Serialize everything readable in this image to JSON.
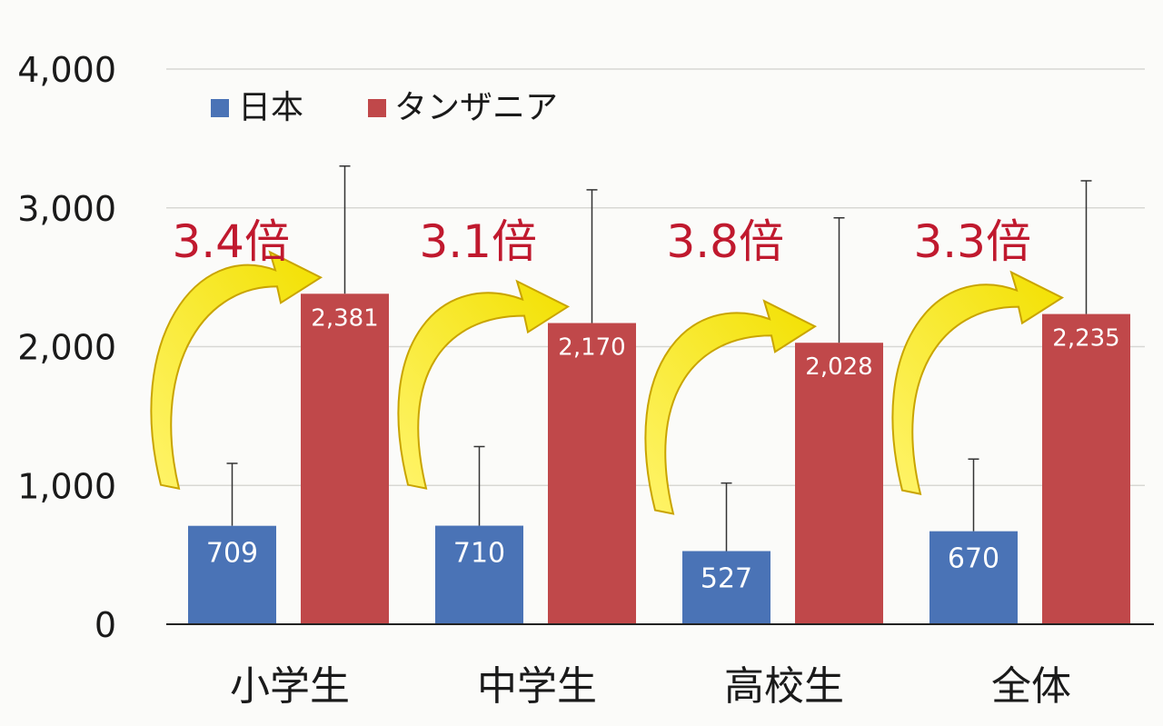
{
  "chart_data": {
    "type": "bar",
    "categories": [
      "小学生",
      "中学生",
      "高校生",
      "全体"
    ],
    "series": [
      {
        "name": "日本",
        "color": "#4a73b6",
        "values": [
          709,
          710,
          527,
          670
        ],
        "labels": [
          "709",
          "710",
          "527",
          "670"
        ],
        "error": [
          450,
          570,
          490,
          520
        ]
      },
      {
        "name": "タンザニア",
        "color": "#c0484a",
        "values": [
          2381,
          2170,
          2028,
          2235
        ],
        "labels": [
          "2,381",
          "2,170",
          "2,028",
          "2,235"
        ],
        "error": [
          920,
          960,
          900,
          960
        ]
      }
    ],
    "ratios": [
      "3.4倍",
      "3.1倍",
      "3.8倍",
      "3.3倍"
    ],
    "ratio_color": "#c0192e",
    "arrow_color": "#f2e900",
    "ylim": [
      0,
      4000
    ],
    "yticks": [
      "0",
      "1,000",
      "2,000",
      "3,000",
      "4,000"
    ],
    "ytick_values": [
      0,
      1000,
      2000,
      3000,
      4000
    ],
    "grid": true,
    "legend_position": "top-left",
    "title": "",
    "xlabel": "",
    "ylabel": ""
  }
}
